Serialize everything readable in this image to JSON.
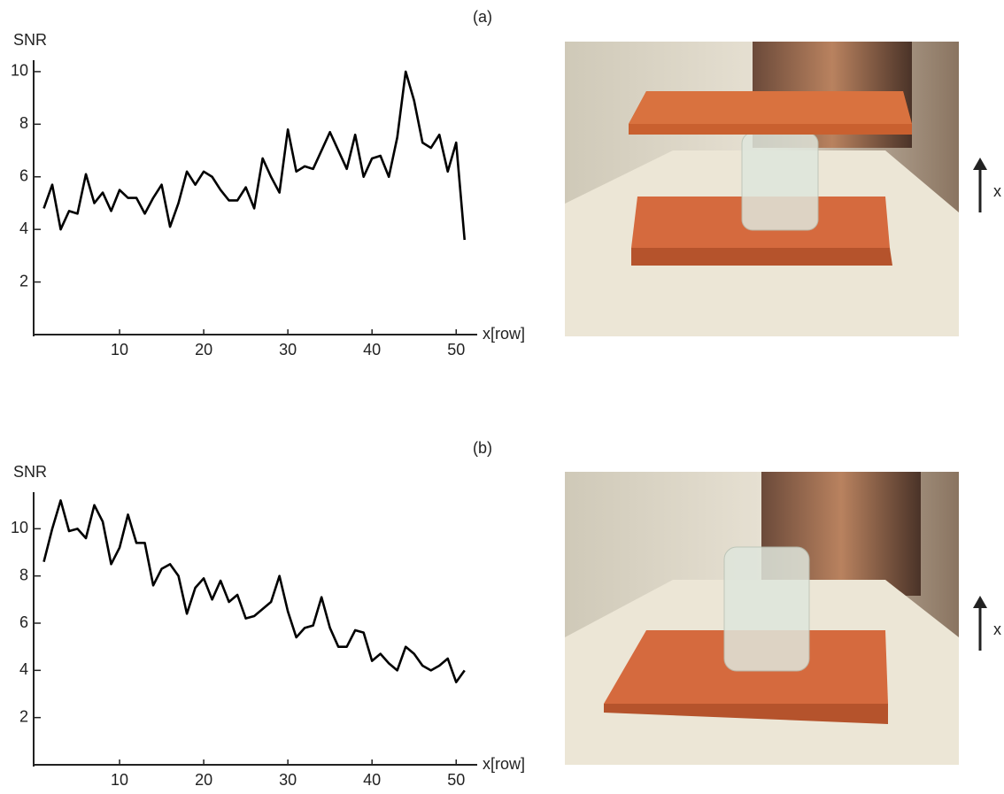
{
  "chart_data": [
    {
      "type": "line",
      "panel_label": "(a)",
      "ylabel": "SNR",
      "xlabel": "x[row]",
      "photo_arrow_label": "x",
      "x": [
        1,
        2,
        3,
        4,
        5,
        6,
        7,
        8,
        9,
        10,
        11,
        12,
        13,
        14,
        15,
        16,
        17,
        18,
        19,
        20,
        21,
        22,
        23,
        24,
        25,
        26,
        27,
        28,
        29,
        30,
        31,
        32,
        33,
        34,
        35,
        36,
        37,
        38,
        39,
        40,
        41,
        42,
        43,
        44,
        45,
        46,
        47,
        48,
        49,
        50,
        51
      ],
      "series": [
        {
          "color": "#000000",
          "values": [
            4.8,
            5.7,
            4.0,
            4.7,
            4.6,
            6.1,
            5.0,
            5.4,
            4.7,
            5.5,
            5.2,
            5.2,
            4.6,
            5.2,
            5.7,
            4.1,
            5.0,
            6.2,
            5.7,
            6.2,
            6.0,
            5.5,
            5.1,
            5.1,
            5.6,
            4.8,
            6.7,
            6.0,
            5.4,
            7.8,
            6.2,
            6.4,
            6.3,
            7.0,
            7.7,
            7.0,
            6.3,
            7.6,
            6.0,
            6.7,
            6.8,
            6.0,
            7.5,
            10.0,
            8.9,
            7.3,
            7.1,
            7.6,
            6.2,
            7.3,
            3.6
          ]
        }
      ],
      "xlim": [
        0,
        52.5
      ],
      "xticks": [
        10,
        20,
        30,
        40,
        50
      ],
      "ylim": [
        0,
        10.3
      ],
      "yticks": [
        2,
        4,
        6,
        8,
        10
      ]
    },
    {
      "type": "line",
      "panel_label": "(b)",
      "ylabel": "SNR",
      "xlabel": "x[row]",
      "photo_arrow_label": "x",
      "x": [
        1,
        2,
        3,
        4,
        5,
        6,
        7,
        8,
        9,
        10,
        11,
        12,
        13,
        14,
        15,
        16,
        17,
        18,
        19,
        20,
        21,
        22,
        23,
        24,
        25,
        26,
        27,
        28,
        29,
        30,
        31,
        32,
        33,
        34,
        35,
        36,
        37,
        38,
        39,
        40,
        41,
        42,
        43,
        44,
        45,
        46,
        47,
        48,
        49,
        50,
        51
      ],
      "series": [
        {
          "color": "#000000",
          "values": [
            8.6,
            10.0,
            11.2,
            9.9,
            10.0,
            9.6,
            11.0,
            10.3,
            8.5,
            9.2,
            10.6,
            9.4,
            9.4,
            7.6,
            8.3,
            8.5,
            8.0,
            6.4,
            7.5,
            7.9,
            7.0,
            7.8,
            6.9,
            7.2,
            6.2,
            6.3,
            6.6,
            6.9,
            8.0,
            6.5,
            5.4,
            5.8,
            5.9,
            7.1,
            5.8,
            5.0,
            5.0,
            5.7,
            5.6,
            4.4,
            4.7,
            4.3,
            4.0,
            5.0,
            4.7,
            4.2,
            4.0,
            4.2,
            4.5,
            3.5,
            4.0
          ]
        }
      ],
      "xlim": [
        0,
        52.5
      ],
      "xticks": [
        10,
        20,
        30,
        40,
        50
      ],
      "ylim": [
        0,
        11.4
      ],
      "yticks": [
        2,
        4,
        6,
        8,
        10
      ]
    }
  ]
}
